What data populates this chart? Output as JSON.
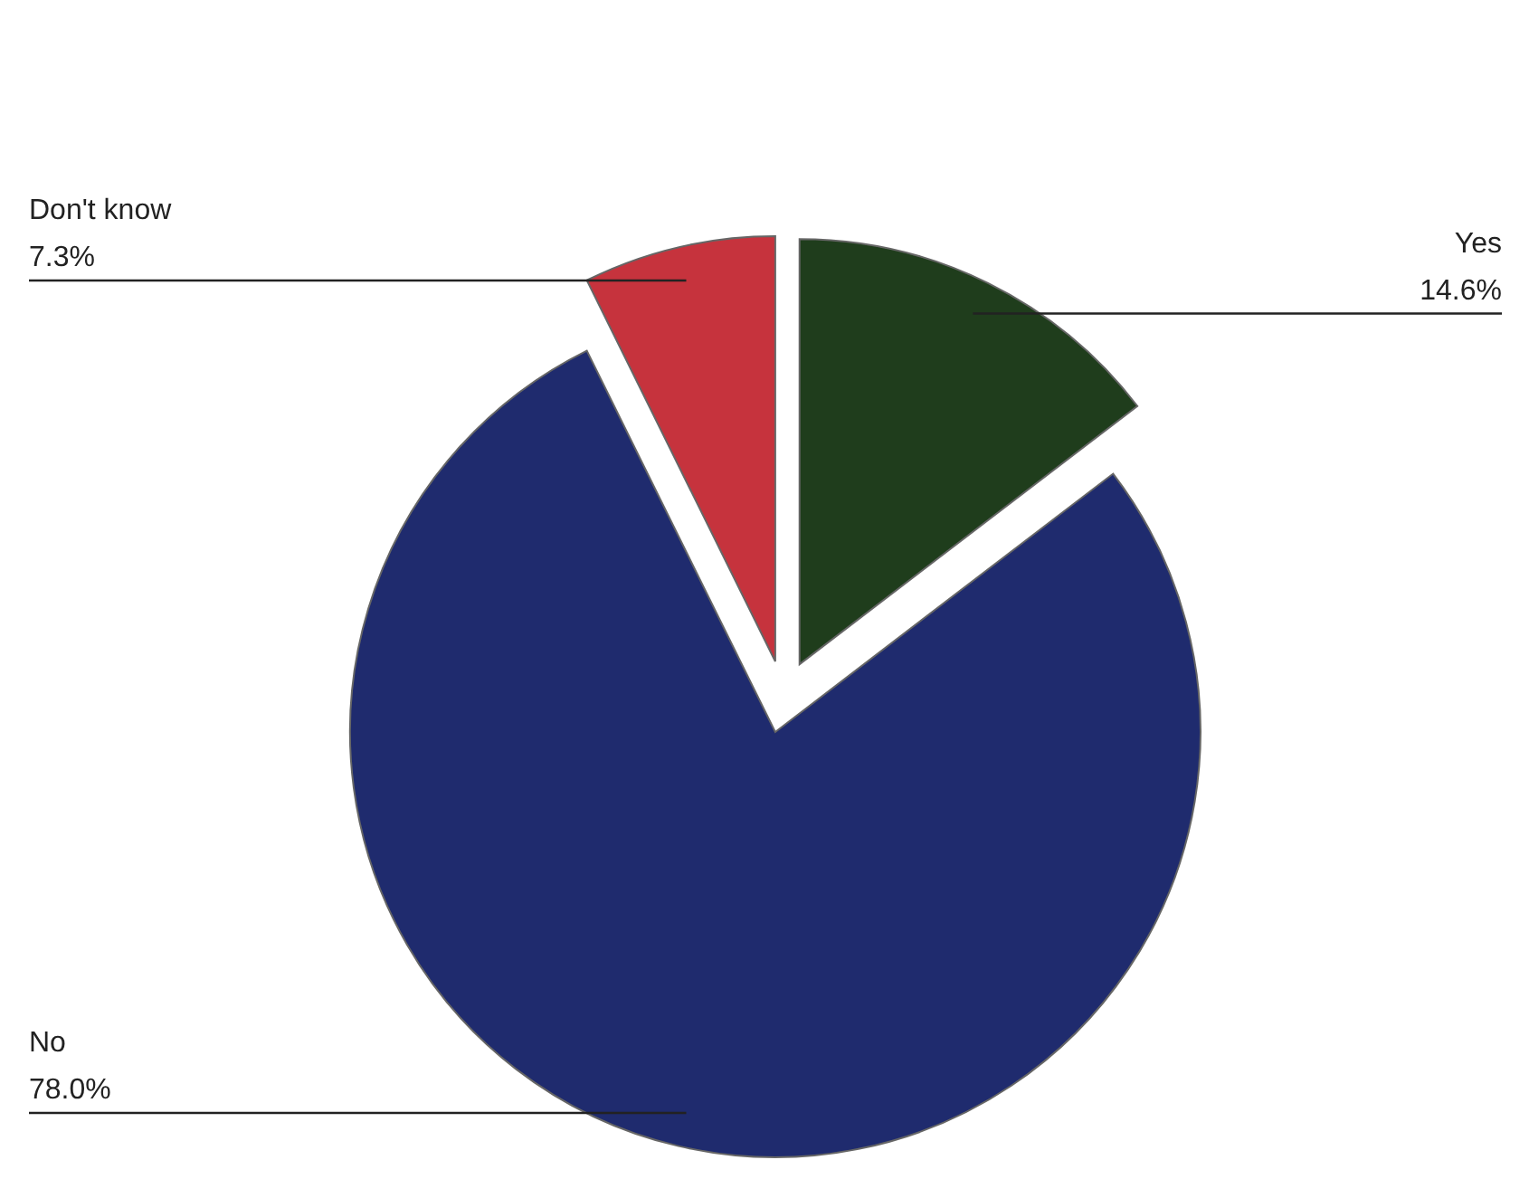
{
  "chart_data": {
    "type": "pie",
    "categories": [
      "Yes",
      "No",
      "Don't know"
    ],
    "values": [
      14.6,
      78.0,
      7.3
    ],
    "colors": [
      "#1f3d1c",
      "#1f2b6e",
      "#c6333d"
    ],
    "value_labels": [
      "14.6%",
      "78.0%",
      "7.3%"
    ]
  }
}
